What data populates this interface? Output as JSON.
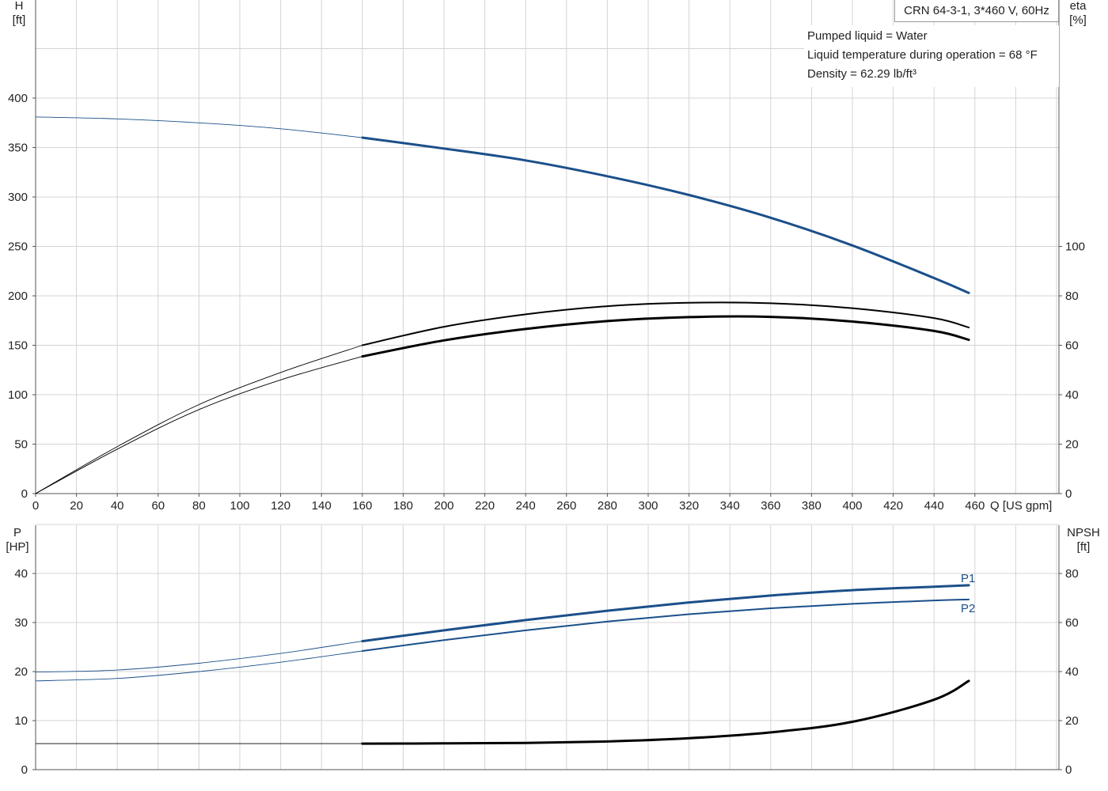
{
  "chart_data": [
    {
      "type": "line",
      "title": "CRN 64-3-1, 3*460 V, 60Hz",
      "conditions": [
        "Pumped liquid = Water",
        "Liquid temperature during operation = 68 °F",
        "Density = 62.29 lb/ft³"
      ],
      "x_label": "Q [US gpm]",
      "x_ticks": [
        "0",
        "20",
        "40",
        "60",
        "80",
        "100",
        "120",
        "140",
        "160",
        "180",
        "200",
        "220",
        "240",
        "260",
        "280",
        "300",
        "320",
        "340",
        "360",
        "380",
        "400",
        "420",
        "440",
        "460"
      ],
      "xlim": [
        0,
        500
      ],
      "y_left": {
        "label_top": "H",
        "label_unit": "[ft]",
        "ticks": [
          "0",
          "50",
          "100",
          "150",
          "200",
          "250",
          "300",
          "350",
          "400"
        ],
        "range": [
          0,
          500
        ]
      },
      "y_right": {
        "label_top": "eta",
        "label_unit": "[%]",
        "ticks": [
          "0",
          "20",
          "40",
          "60",
          "80",
          "100"
        ],
        "range": [
          0,
          160
        ]
      },
      "series": [
        {
          "axis": "left",
          "color": "#1b4f8a",
          "operating_from": 160,
          "points": [
            [
              0,
              381
            ],
            [
              40,
              379
            ],
            [
              80,
              375
            ],
            [
              120,
              369
            ],
            [
              160,
              360
            ],
            [
              200,
              349
            ],
            [
              240,
              337
            ],
            [
              280,
              321
            ],
            [
              320,
              302
            ],
            [
              360,
              279
            ],
            [
              400,
              251
            ],
            [
              440,
              218
            ],
            [
              457,
              203
            ]
          ]
        },
        {
          "axis": "right",
          "color": "#000000",
          "weight": "thin",
          "operating_from": 160,
          "points": [
            [
              0,
              0
            ],
            [
              40,
              19
            ],
            [
              80,
              36
            ],
            [
              120,
              49
            ],
            [
              160,
              60
            ],
            [
              200,
              67.5
            ],
            [
              240,
              72.5
            ],
            [
              280,
              75.8
            ],
            [
              320,
              77.2
            ],
            [
              360,
              77
            ],
            [
              400,
              75
            ],
            [
              440,
              71
            ],
            [
              457,
              67.2
            ]
          ]
        },
        {
          "axis": "right",
          "color": "#000000",
          "weight": "thick",
          "operating_from": 160,
          "points": [
            [
              0,
              0
            ],
            [
              40,
              18
            ],
            [
              80,
              34
            ],
            [
              120,
              46
            ],
            [
              160,
              55.5
            ],
            [
              200,
              62
            ],
            [
              240,
              66.6
            ],
            [
              280,
              69.8
            ],
            [
              320,
              71.4
            ],
            [
              360,
              71.5
            ],
            [
              400,
              69.6
            ],
            [
              440,
              65.8
            ],
            [
              457,
              62.2
            ]
          ]
        }
      ]
    },
    {
      "type": "line",
      "x_ticks": [
        "0",
        "20",
        "40",
        "60",
        "80",
        "100",
        "120",
        "140",
        "160",
        "180",
        "200",
        "220",
        "240",
        "260",
        "280",
        "300",
        "320",
        "340",
        "360",
        "380",
        "400",
        "420",
        "440",
        "460"
      ],
      "xlim": [
        0,
        500
      ],
      "y_left": {
        "label_top": "P",
        "label_unit": "[HP]",
        "ticks": [
          "0",
          "10",
          "20",
          "30",
          "40"
        ],
        "range": [
          0,
          50
        ]
      },
      "y_right": {
        "label_top": "NPSH",
        "label_unit": "[ft]",
        "ticks": [
          "0",
          "20",
          "40",
          "60",
          "80"
        ],
        "range": [
          0,
          100
        ]
      },
      "series": [
        {
          "name": "P1",
          "axis": "left",
          "color": "#1b4f8a",
          "weight": "thick",
          "operating_from": 160,
          "points": [
            [
              0,
              19.9
            ],
            [
              40,
              20.3
            ],
            [
              80,
              21.7
            ],
            [
              120,
              23.7
            ],
            [
              160,
              26.2
            ],
            [
              200,
              28.4
            ],
            [
              240,
              30.5
            ],
            [
              280,
              32.4
            ],
            [
              320,
              34.1
            ],
            [
              360,
              35.5
            ],
            [
              400,
              36.6
            ],
            [
              440,
              37.3
            ],
            [
              457,
              37.6
            ]
          ]
        },
        {
          "name": "P2",
          "axis": "left",
          "color": "#1b4f8a",
          "weight": "medium",
          "operating_from": 160,
          "points": [
            [
              0,
              18.1
            ],
            [
              40,
              18.6
            ],
            [
              80,
              20
            ],
            [
              120,
              21.9
            ],
            [
              160,
              24.2
            ],
            [
              200,
              26.4
            ],
            [
              240,
              28.4
            ],
            [
              280,
              30.2
            ],
            [
              320,
              31.7
            ],
            [
              360,
              32.9
            ],
            [
              400,
              33.8
            ],
            [
              440,
              34.5
            ],
            [
              457,
              34.7
            ]
          ]
        },
        {
          "axis": "right",
          "color": "#000000",
          "weight": "thick",
          "operating_from": 160,
          "points": [
            [
              0,
              10.6
            ],
            [
              160,
              10.6
            ],
            [
              200,
              10.7
            ],
            [
              240,
              10.9
            ],
            [
              280,
              11.5
            ],
            [
              320,
              12.8
            ],
            [
              360,
              15.2
            ],
            [
              400,
              19.5
            ],
            [
              440,
              28.5
            ],
            [
              457,
              36.2
            ]
          ]
        }
      ]
    }
  ]
}
